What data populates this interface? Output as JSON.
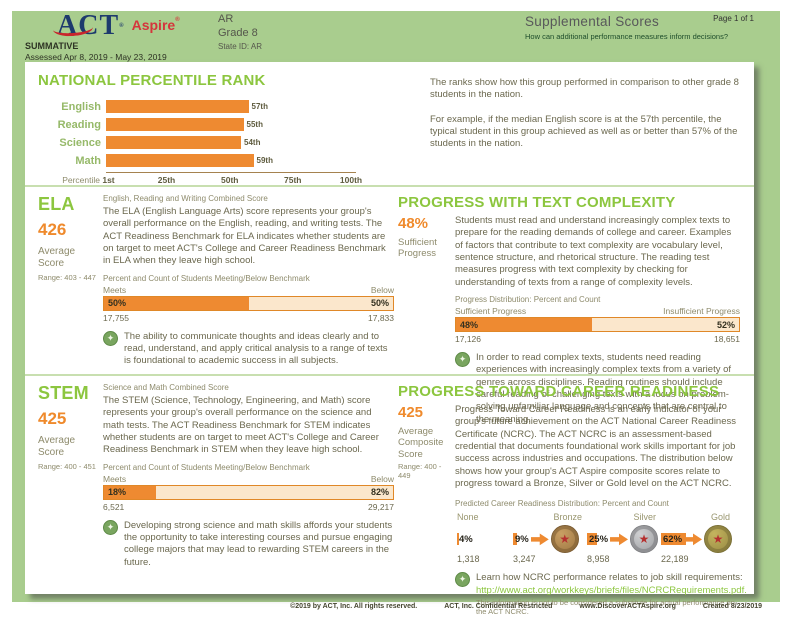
{
  "header": {
    "act": "ACT",
    "act_reg": "®",
    "aspire": "Aspire",
    "aspire_reg": "®",
    "summative": "SUMMATIVE",
    "assessed": "Assessed Apr 8, 2019 - May 23, 2019",
    "org": "AR",
    "grade": "Grade 8",
    "state_id": "State ID: AR",
    "title": "Supplemental Scores",
    "question": "How can additional performance measures inform decisions?",
    "page": "Page 1 of 1"
  },
  "npr": {
    "title": "NATIONAL PERCENTILE RANK",
    "axis_label": "Percentile",
    "desc1": "The ranks show how this group performed in comparison to other grade 8 students in the nation.",
    "desc2": "For example, if the median English score is at the 57th percentile, the typical student in this group achieved as well as or better than 57% of the students in the nation."
  },
  "chart_data": [
    {
      "id": "national-percentile-rank",
      "type": "bar",
      "orientation": "horizontal",
      "categories": [
        "English",
        "Reading",
        "Science",
        "Math"
      ],
      "values": [
        57,
        55,
        54,
        59
      ],
      "value_labels": [
        "57th",
        "55th",
        "54th",
        "59th"
      ],
      "xlabel": "Percentile",
      "ticks": [
        "1st",
        "25th",
        "50th",
        "75th",
        "100th"
      ],
      "xlim": [
        1,
        100
      ],
      "bar_color": "#ee8a31",
      "title": "NATIONAL PERCENTILE RANK"
    },
    {
      "id": "ela-benchmark",
      "type": "bar",
      "stacked": true,
      "title": "Percent and Count of Students Meeting/Below Benchmark",
      "categories": [
        "Meets",
        "Below"
      ],
      "values": [
        50,
        50
      ],
      "labels": [
        "50%",
        "50%"
      ],
      "counts": [
        "17,755",
        "17,833"
      ]
    },
    {
      "id": "text-complexity-distribution",
      "type": "bar",
      "stacked": true,
      "title": "Progress Distribution: Percent and Count",
      "categories": [
        "Sufficient Progress",
        "Insufficient Progress"
      ],
      "values": [
        48,
        52
      ],
      "labels": [
        "48%",
        "52%"
      ],
      "counts": [
        "17,126",
        "18,651"
      ]
    },
    {
      "id": "stem-benchmark",
      "type": "bar",
      "stacked": true,
      "title": "Percent and Count of Students Meeting/Below Benchmark",
      "categories": [
        "Meets",
        "Below"
      ],
      "values": [
        18,
        82
      ],
      "labels": [
        "18%",
        "82%"
      ],
      "counts": [
        "6,521",
        "29,217"
      ]
    },
    {
      "id": "career-readiness-distribution",
      "type": "bar",
      "title": "Predicted Career Readiness Distribution: Percent and Count",
      "categories": [
        "None",
        "Bronze",
        "Silver",
        "Gold"
      ],
      "values": [
        4,
        9,
        25,
        62
      ],
      "labels": [
        "4%",
        "9%",
        "25%",
        "62%"
      ],
      "counts": [
        "1,318",
        "3,247",
        "8,958",
        "22,189"
      ]
    }
  ],
  "ela": {
    "heading": "ELA",
    "score": "426",
    "score_label": "Average Score",
    "range": "Range: 403 - 447",
    "subtitle": "English, Reading and Writing Combined Score",
    "body": "The ELA (English Language Arts) score represents your group's overall performance on the English, reading, and writing tests. The ACT Readiness Benchmark for ELA indicates whether students are on target to meet ACT's College and Career Readiness Benchmark in ELA when they leave high school.",
    "callout": "The ability to communicate thoughts and ideas clearly and to read, understand, and apply critical analysis to a range of texts is foundational to academic success in all subjects."
  },
  "text_complexity": {
    "heading": "PROGRESS WITH TEXT COMPLEXITY",
    "score": "48%",
    "score_label": "Sufficient Progress",
    "body": "Students must read and understand increasingly complex texts to prepare for the reading demands of college and career. Examples of factors that contribute to text complexity are vocabulary level, sentence structure, and rhetorical structure. The reading test measures progress with text complexity by checking for understanding of texts from a range of complexity levels.",
    "callout": "In order to read complex texts, students need reading experiences with increasingly complex texts from a variety of genres across disciplines. Reading routines should include careful reading of challenging texts with a focus on problem-solving unfamiliar language and concepts that are central to the meaning."
  },
  "stem": {
    "heading": "STEM",
    "score": "425",
    "score_label": "Average Score",
    "range": "Range: 400 - 451",
    "subtitle": "Science and Math Combined Score",
    "body": "The STEM (Science, Technology, Engineering, and Math) score represents your group's overall performance on the science and math tests. The ACT Readiness Benchmark for STEM indicates whether students are on target to meet ACT's College and Career Readiness Benchmark in STEM when they leave high school.",
    "callout": "Developing strong science and math skills affords your students the opportunity to take interesting courses and pursue engaging college majors that may lead to rewarding STEM careers in the future."
  },
  "career": {
    "heading": "PROGRESS TOWARD CAREER READINESS",
    "score": "425",
    "score_label": "Average Composite Score",
    "range": "Range: 400 - 449",
    "body": "Progress Toward Career Readiness is an early indicator of your group's future achievement on the ACT National Career Readiness Certificate (NCRC). The ACT NCRC is an assessment-based credential that documents foundational work skills important for job success across industries and occupations. The distribution below shows how your group's ACT Aspire composite scores relate to progress toward a Bronze, Silver or Gold level on the ACT NCRC.",
    "callout_line1": "Learn how NCRC performance relates to job skill requirements:",
    "callout_link": "http://www.act.org/workkeys/briefs/files/NCRCRequirements.pdf.",
    "callout_note": "This information is not to be considered a substitute for actual performance on the ACT NCRC."
  },
  "footer": {
    "items": [
      "©2019 by ACT, Inc. All rights reserved.",
      "ACT, Inc. Confidential Restricted",
      "www.DiscoverACTAspire.org",
      "Created 8/23/2019"
    ]
  },
  "colors": {
    "page_green": "#a9cd8e",
    "heading_green": "#8cc63f",
    "accent_orange": "#ee8a31",
    "bar_track": "#fbe7cc",
    "logo_navy": "#1d3a6d",
    "logo_red": "#d5353c",
    "body_olive": "#6b684e"
  }
}
